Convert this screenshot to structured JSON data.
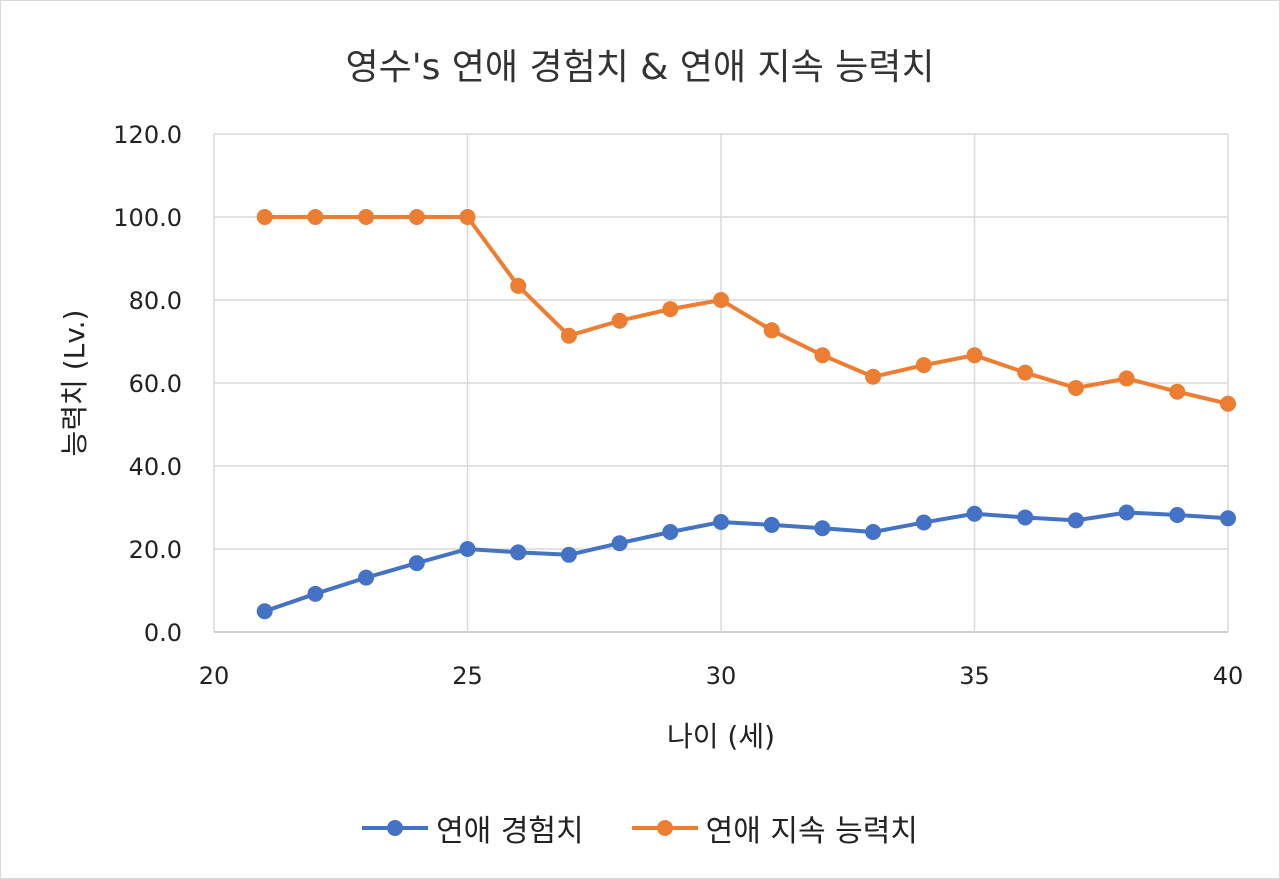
{
  "chart_data": {
    "type": "line",
    "title": "영수's 연애 경험치 & 연애 지속 능력치",
    "xlabel": "나이 (세)",
    "ylabel": "능력치 (Lv.)",
    "xlim": [
      20,
      40
    ],
    "ylim": [
      0,
      120
    ],
    "xticks": [
      "20",
      "25",
      "30",
      "35",
      "40"
    ],
    "yticks": [
      "0.0",
      "20.0",
      "40.0",
      "60.0",
      "80.0",
      "100.0",
      "120.0"
    ],
    "x": [
      21,
      22,
      23,
      24,
      25,
      26,
      27,
      28,
      29,
      30,
      31,
      32,
      33,
      34,
      35,
      36,
      37,
      38,
      39,
      40
    ],
    "series": [
      {
        "name": "연애 경험치",
        "color": "#4472c4",
        "values": [
          5.0,
          9.2,
          13.1,
          16.6,
          20.0,
          19.2,
          18.6,
          21.4,
          24.1,
          26.5,
          25.8,
          25.0,
          24.1,
          26.4,
          28.5,
          27.6,
          26.9,
          28.8,
          28.2,
          27.4
        ]
      },
      {
        "name": "연애 지속 능력치",
        "color": "#ed7d31",
        "values": [
          100.0,
          100.0,
          100.0,
          100.0,
          100.0,
          83.4,
          71.4,
          75.0,
          77.8,
          80.0,
          72.7,
          66.7,
          61.5,
          64.3,
          66.7,
          62.5,
          58.8,
          61.1,
          57.9,
          55.0
        ]
      }
    ],
    "grid": true,
    "legend": "bottom"
  }
}
